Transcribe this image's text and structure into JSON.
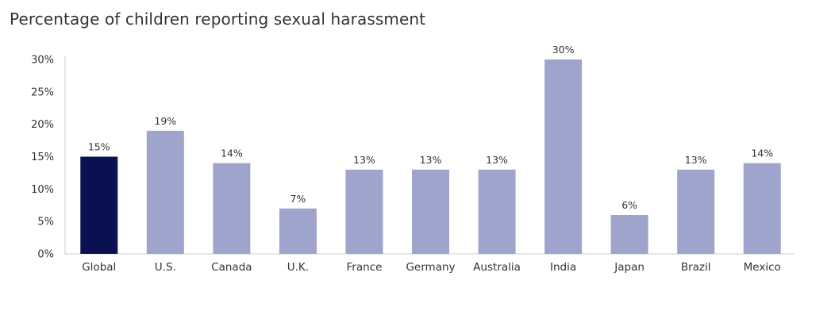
{
  "chart_data": {
    "type": "bar",
    "title": "Percentage of children reporting sexual harassment",
    "xlabel": "",
    "ylabel": "",
    "categories": [
      "Global",
      "U.S.",
      "Canada",
      "U.K.",
      "France",
      "Germany",
      "Australia",
      "India",
      "Japan",
      "Brazil",
      "Mexico"
    ],
    "values": [
      15,
      19,
      14,
      7,
      13,
      13,
      13,
      30,
      6,
      13,
      14
    ],
    "data_labels": [
      "15%",
      "19%",
      "14%",
      "7%",
      "13%",
      "13%",
      "13%",
      "30%",
      "6%",
      "13%",
      "14%"
    ],
    "ylim": [
      0,
      30
    ],
    "yticks": [
      0,
      5,
      10,
      15,
      20,
      25,
      30
    ],
    "ytick_labels": [
      "0%",
      "5%",
      "10%",
      "15%",
      "20%",
      "25%",
      "30%"
    ],
    "grid": false,
    "legend": "none",
    "colors": {
      "highlight": "#0b1150",
      "default": "#9fa4cd",
      "axis": "#cccccc"
    },
    "highlight_category": "Global"
  }
}
